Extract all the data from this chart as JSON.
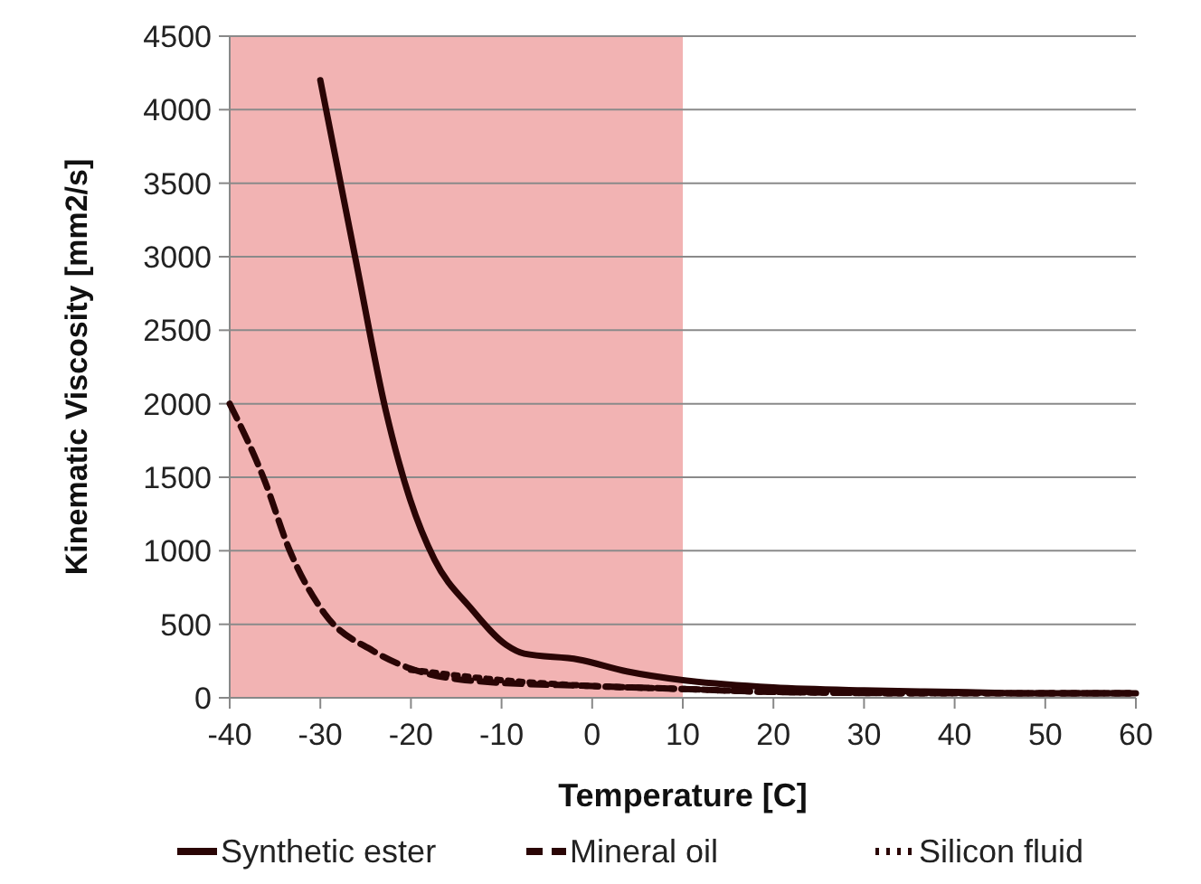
{
  "chart_data": {
    "type": "line",
    "xlabel": "Temperature [C]",
    "ylabel": "Kinematic Viscosity [mm2/s]",
    "xlim": [
      -40,
      60
    ],
    "ylim": [
      0,
      4500
    ],
    "xticks": [
      -40,
      -30,
      -20,
      -10,
      0,
      10,
      20,
      30,
      40,
      50,
      60
    ],
    "yticks": [
      0,
      500,
      1000,
      1500,
      2000,
      2500,
      3000,
      3500,
      4000,
      4500
    ],
    "grid": "y",
    "legend": "bottom",
    "bands": [
      {
        "axis": "x",
        "from": -40,
        "to": 10,
        "color": "#f2b3b3"
      }
    ],
    "series": [
      {
        "name": "Synthetic ester",
        "color": "#2a0505",
        "line_style": "solid",
        "x": [
          -30,
          -26.1,
          -22.8,
          -20.1,
          -17.4,
          -13.4,
          -9.5,
          -7.5,
          -1.5,
          3.8,
          10,
          20,
          30,
          40,
          50,
          60
        ],
        "values": [
          4200,
          2980,
          1960,
          1350,
          940,
          610,
          360,
          300,
          260,
          180,
          120,
          70,
          50,
          40,
          30,
          30
        ]
      },
      {
        "name": "Mineral oil",
        "color": "#2a0505",
        "line_style": "dashed",
        "x": [
          -40,
          -36.1,
          -33.5,
          -29.5,
          -24.2,
          -20.1,
          -12.1,
          0,
          10,
          20,
          40,
          60
        ],
        "values": [
          2000,
          1470,
          1020,
          570,
          320,
          200,
          110,
          80,
          60,
          40,
          30,
          30
        ]
      },
      {
        "name": "Silicon fluid",
        "color": "#2a0505",
        "line_style": "dotted",
        "x": [
          -20,
          -10,
          0,
          10,
          20,
          40,
          60
        ],
        "values": [
          190,
          120,
          80,
          60,
          40,
          30,
          30
        ]
      }
    ]
  }
}
